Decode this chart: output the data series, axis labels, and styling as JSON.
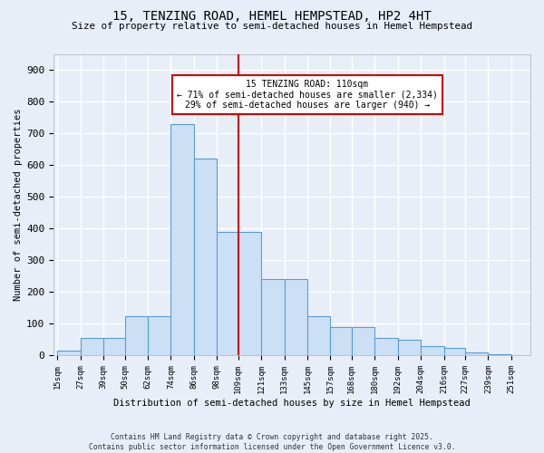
{
  "title": "15, TENZING ROAD, HEMEL HEMPSTEAD, HP2 4HT",
  "subtitle": "Size of property relative to semi-detached houses in Hemel Hempstead",
  "xlabel": "Distribution of semi-detached houses by size in Hemel Hempstead",
  "ylabel": "Number of semi-detached properties",
  "categories": [
    "15sqm",
    "27sqm",
    "39sqm",
    "50sqm",
    "62sqm",
    "74sqm",
    "86sqm",
    "98sqm",
    "109sqm",
    "121sqm",
    "133sqm",
    "145sqm",
    "157sqm",
    "168sqm",
    "180sqm",
    "192sqm",
    "204sqm",
    "216sqm",
    "227sqm",
    "239sqm",
    "251sqm"
  ],
  "bar_heights": [
    15,
    55,
    55,
    125,
    125,
    730,
    620,
    390,
    390,
    240,
    240,
    125,
    90,
    90,
    55,
    50,
    30,
    25,
    10,
    5,
    2
  ],
  "bar_color": "#cce0f5",
  "bar_edge_color": "#5b9bd5",
  "property_line_x": 109,
  "annotation_title": "15 TENZING ROAD: 110sqm",
  "annotation_line1": "← 71% of semi-detached houses are smaller (2,334)",
  "annotation_line2": "29% of semi-detached houses are larger (940) →",
  "annotation_box_color": "#ffffff",
  "annotation_box_edge": "#cc0000",
  "vline_color": "#cc0000",
  "ylim_max": 950,
  "yticks": [
    0,
    100,
    200,
    300,
    400,
    500,
    600,
    700,
    800,
    900
  ],
  "background_color": "#e8eef8",
  "grid_color": "#ffffff",
  "bin_edges": [
    15,
    27,
    39,
    50,
    62,
    74,
    86,
    98,
    109,
    121,
    133,
    145,
    157,
    168,
    180,
    192,
    204,
    216,
    227,
    239,
    251,
    263
  ],
  "footer_line1": "Contains HM Land Registry data © Crown copyright and database right 2025.",
  "footer_line2": "Contains public sector information licensed under the Open Government Licence v3.0."
}
